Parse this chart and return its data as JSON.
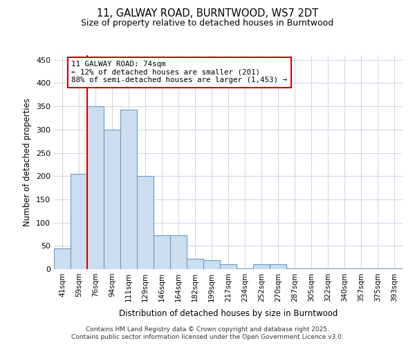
{
  "title1": "11, GALWAY ROAD, BURNTWOOD, WS7 2DT",
  "title2": "Size of property relative to detached houses in Burntwood",
  "xlabel": "Distribution of detached houses by size in Burntwood",
  "ylabel": "Number of detached properties",
  "categories": [
    "41sqm",
    "59sqm",
    "76sqm",
    "94sqm",
    "111sqm",
    "129sqm",
    "146sqm",
    "164sqm",
    "182sqm",
    "199sqm",
    "217sqm",
    "234sqm",
    "252sqm",
    "270sqm",
    "287sqm",
    "305sqm",
    "322sqm",
    "340sqm",
    "357sqm",
    "375sqm",
    "393sqm"
  ],
  "values": [
    45,
    205,
    350,
    300,
    343,
    200,
    73,
    73,
    23,
    20,
    10,
    1,
    10,
    10,
    2,
    1,
    1,
    1,
    1,
    1,
    2
  ],
  "bar_color": "#ccddf0",
  "bar_edge_color": "#6699cc",
  "red_line_bar_index": 2,
  "annotation_text": "11 GALWAY ROAD: 74sqm\n← 12% of detached houses are smaller (201)\n88% of semi-detached houses are larger (1,453) →",
  "annotation_box_color": "#ffffff",
  "annotation_box_edge_color": "#cc0000",
  "red_line_color": "#cc0000",
  "bg_color": "#ffffff",
  "plot_bg_color": "#ffffff",
  "grid_color": "#d0d8e8",
  "footer1": "Contains HM Land Registry data © Crown copyright and database right 2025.",
  "footer2": "Contains public sector information licensed under the Open Government Licence v3.0.",
  "ylim": [
    0,
    460
  ],
  "yticks": [
    0,
    50,
    100,
    150,
    200,
    250,
    300,
    350,
    400,
    450
  ]
}
